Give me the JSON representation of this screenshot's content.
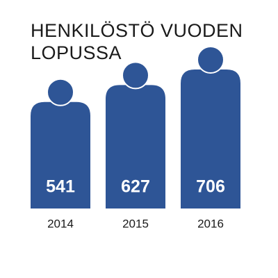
{
  "chart_data": {
    "type": "pictogram-bar",
    "title": [
      "HENKILÖSTÖ VUODEN",
      "LOPUSSA"
    ],
    "categories": [
      "2014",
      "2015",
      "2016"
    ],
    "values": [
      541,
      627,
      706
    ],
    "color": "#2e5596"
  }
}
